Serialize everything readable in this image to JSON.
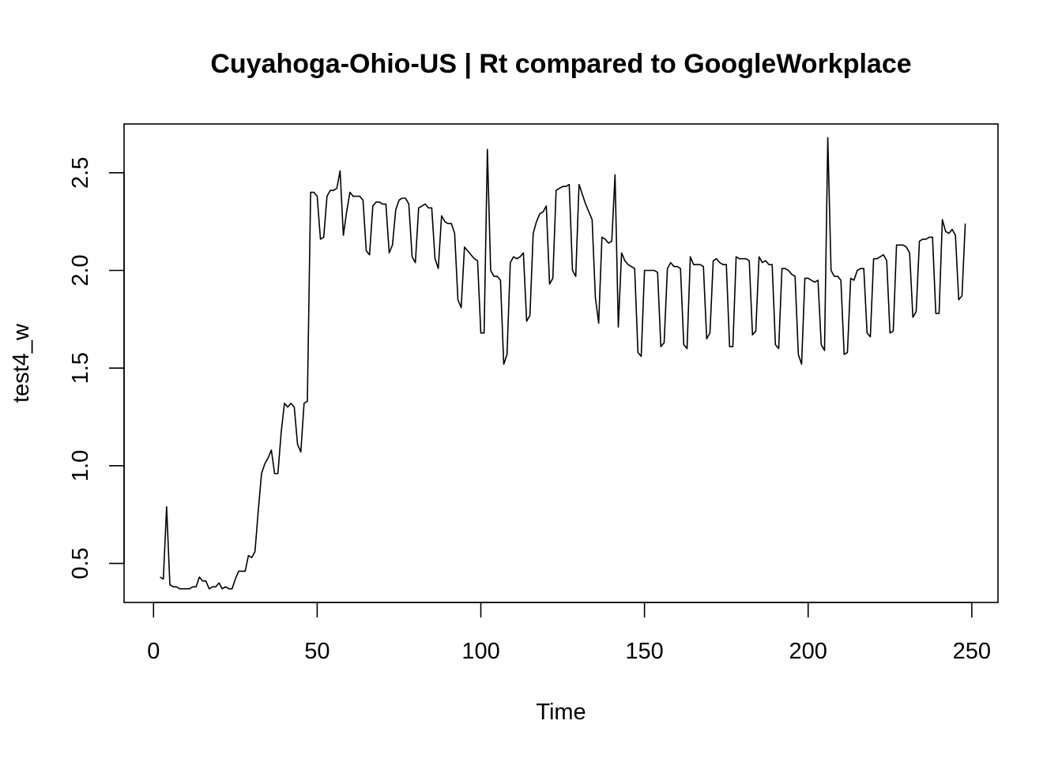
{
  "chart_data": {
    "type": "line",
    "title": "Cuyahoga-Ohio-US | Rt compared to GoogleWorkplace",
    "xlabel": "Time",
    "ylabel": "test4_w",
    "xlim": [
      -9,
      258
    ],
    "ylim": [
      0.3,
      2.75
    ],
    "xticks": [
      0,
      50,
      100,
      150,
      200,
      250
    ],
    "xtick_labels": [
      "0",
      "50",
      "100",
      "150",
      "200",
      "250"
    ],
    "yticks": [
      0.5,
      1.0,
      1.5,
      2.0,
      2.5
    ],
    "ytick_labels": [
      "0.5",
      "1.0",
      "1.5",
      "2.0",
      "2.5"
    ],
    "grid": false,
    "series": [
      {
        "name": "test4_w",
        "x": [
          2,
          3,
          4,
          5,
          6,
          7,
          8,
          9,
          10,
          11,
          12,
          13,
          14,
          15,
          16,
          17,
          18,
          19,
          20,
          21,
          22,
          23,
          24,
          25,
          26,
          27,
          28,
          29,
          30,
          31,
          32,
          33,
          34,
          35,
          36,
          37,
          38,
          39,
          40,
          41,
          42,
          43,
          44,
          45,
          46,
          47,
          48,
          49,
          50,
          51,
          52,
          53,
          54,
          55,
          56,
          57,
          58,
          59,
          60,
          61,
          62,
          63,
          64,
          65,
          66,
          67,
          68,
          69,
          70,
          71,
          72,
          73,
          74,
          75,
          76,
          77,
          78,
          79,
          80,
          81,
          82,
          83,
          84,
          85,
          86,
          87,
          88,
          89,
          90,
          91,
          92,
          93,
          94,
          95,
          96,
          97,
          98,
          99,
          100,
          101,
          102,
          103,
          104,
          105,
          106,
          107,
          108,
          109,
          110,
          111,
          112,
          113,
          114,
          115,
          116,
          117,
          118,
          119,
          120,
          121,
          122,
          123,
          124,
          125,
          126,
          127,
          128,
          129,
          130,
          131,
          132,
          133,
          134,
          135,
          136,
          137,
          138,
          139,
          140,
          141,
          142,
          143,
          144,
          145,
          146,
          147,
          148,
          149,
          150,
          151,
          152,
          153,
          154,
          155,
          156,
          157,
          158,
          159,
          160,
          161,
          162,
          163,
          164,
          165,
          166,
          167,
          168,
          169,
          170,
          171,
          172,
          173,
          174,
          175,
          176,
          177,
          178,
          179,
          180,
          181,
          182,
          183,
          184,
          185,
          186,
          187,
          188,
          189,
          190,
          191,
          192,
          193,
          194,
          195,
          196,
          197,
          198,
          199,
          200,
          201,
          202,
          203,
          204,
          205,
          206,
          207,
          208,
          209,
          210,
          211,
          212,
          213,
          214,
          215,
          216,
          217,
          218,
          219,
          220,
          221,
          222,
          223,
          224,
          225,
          226,
          227,
          228,
          229,
          230,
          231,
          232,
          233,
          234,
          235,
          236,
          237,
          238,
          239,
          240,
          241,
          242,
          243,
          244,
          245,
          246,
          247,
          248
        ],
        "values": [
          0.43,
          0.42,
          0.79,
          0.39,
          0.38,
          0.38,
          0.37,
          0.37,
          0.37,
          0.37,
          0.38,
          0.38,
          0.43,
          0.41,
          0.41,
          0.37,
          0.38,
          0.38,
          0.4,
          0.37,
          0.38,
          0.37,
          0.37,
          0.42,
          0.46,
          0.46,
          0.46,
          0.54,
          0.53,
          0.56,
          0.77,
          0.96,
          1.01,
          1.04,
          1.08,
          0.96,
          0.96,
          1.17,
          1.32,
          1.3,
          1.32,
          1.3,
          1.11,
          1.07,
          1.32,
          1.33,
          2.4,
          2.4,
          2.38,
          2.16,
          2.17,
          2.38,
          2.41,
          2.41,
          2.42,
          2.51,
          2.18,
          2.3,
          2.4,
          2.38,
          2.38,
          2.38,
          2.36,
          2.1,
          2.08,
          2.33,
          2.35,
          2.35,
          2.34,
          2.34,
          2.09,
          2.13,
          2.31,
          2.36,
          2.37,
          2.37,
          2.34,
          2.07,
          2.04,
          2.32,
          2.33,
          2.34,
          2.32,
          2.32,
          2.06,
          2.01,
          2.28,
          2.25,
          2.24,
          2.24,
          2.19,
          1.85,
          1.81,
          2.12,
          2.1,
          2.08,
          2.06,
          2.05,
          1.68,
          1.68,
          2.62,
          2.0,
          1.97,
          1.97,
          1.95,
          1.52,
          1.57,
          2.04,
          2.07,
          2.06,
          2.07,
          2.09,
          1.74,
          1.77,
          2.19,
          2.25,
          2.29,
          2.3,
          2.33,
          1.93,
          1.96,
          2.41,
          2.42,
          2.43,
          2.43,
          2.44,
          2.0,
          1.97,
          2.44,
          2.39,
          2.34,
          2.3,
          2.26,
          1.86,
          1.73,
          2.17,
          2.16,
          2.14,
          2.15,
          2.49,
          1.71,
          2.09,
          2.05,
          2.03,
          2.02,
          2.01,
          1.58,
          1.56,
          2.0,
          2.0,
          2.0,
          2.0,
          1.99,
          1.61,
          1.63,
          2.01,
          2.04,
          2.02,
          2.02,
          2.01,
          1.62,
          1.6,
          2.07,
          2.03,
          2.03,
          2.03,
          2.02,
          1.65,
          1.68,
          2.05,
          2.06,
          2.04,
          2.03,
          2.03,
          1.61,
          1.61,
          2.07,
          2.06,
          2.06,
          2.06,
          2.05,
          1.67,
          1.69,
          2.07,
          2.04,
          2.05,
          2.03,
          2.03,
          1.62,
          1.6,
          2.01,
          2.01,
          2.0,
          1.98,
          1.97,
          1.57,
          1.52,
          1.96,
          1.96,
          1.95,
          1.94,
          1.95,
          1.62,
          1.59,
          2.68,
          2.0,
          1.97,
          1.97,
          1.95,
          1.57,
          1.58,
          1.96,
          1.95,
          2.0,
          2.01,
          2.01,
          1.68,
          1.66,
          2.06,
          2.06,
          2.07,
          2.08,
          2.05,
          1.68,
          1.69,
          2.13,
          2.13,
          2.13,
          2.12,
          2.09,
          1.76,
          1.79,
          2.15,
          2.16,
          2.16,
          2.17,
          2.17,
          1.78,
          1.78,
          2.26,
          2.2,
          2.19,
          2.21,
          2.18,
          1.85,
          1.87,
          2.24
        ]
      }
    ]
  }
}
